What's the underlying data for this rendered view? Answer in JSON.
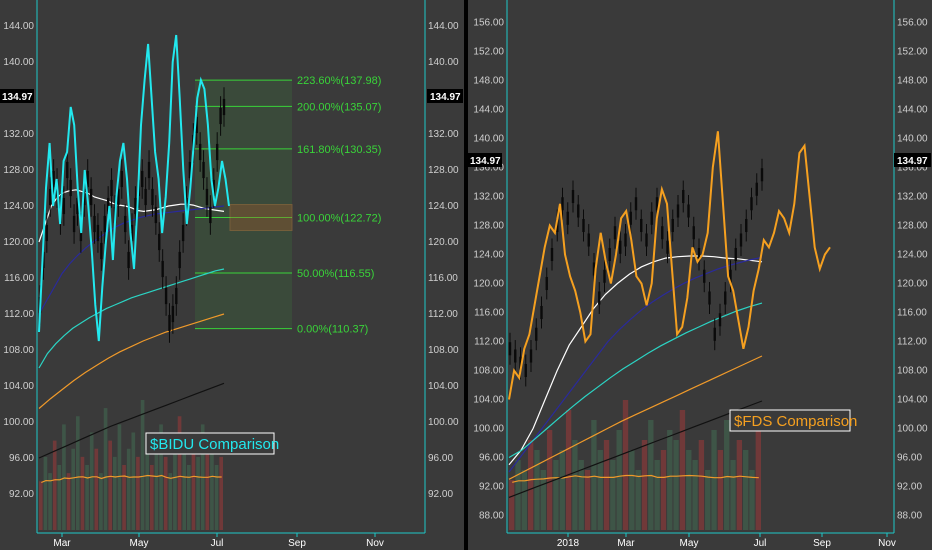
{
  "chart_data": [
    {
      "type": "line",
      "title": "$BIDU Comparison",
      "comparison_color": "#22e8ee",
      "ylim": [
        88,
        146
      ],
      "y_ticks": [
        "92.00",
        "96.00",
        "100.00",
        "104.00",
        "108.00",
        "112.00",
        "116.00",
        "120.00",
        "124.00",
        "128.00",
        "132.00",
        "136.00",
        "140.00",
        "144.00"
      ],
      "x_labels": [
        "Mar",
        "May",
        "Jul",
        "Sep",
        "Nov"
      ],
      "last_price": "134.97",
      "fib_levels": [
        {
          "label": "223.60%(137.98)",
          "price": 137.98
        },
        {
          "label": "200.00%(135.07)",
          "price": 135.07
        },
        {
          "label": "161.80%(130.35)",
          "price": 130.35
        },
        {
          "label": "100.00%(122.72)",
          "price": 122.72
        },
        {
          "label": "50.00%(116.55)",
          "price": 116.55
        },
        {
          "label": "0.00%(110.37)",
          "price": 110.37
        }
      ],
      "price_series": [
        113,
        118,
        121,
        125,
        127,
        126,
        123,
        124,
        128,
        126,
        122,
        124,
        121,
        125,
        127,
        125,
        122,
        121,
        119,
        122,
        124,
        126,
        123,
        125,
        127,
        122,
        118,
        121,
        124,
        126,
        127,
        125,
        128,
        125,
        123,
        120,
        117,
        114,
        111,
        112,
        114,
        118,
        121,
        124,
        128,
        131,
        133,
        130,
        128,
        125,
        123,
        126,
        130,
        134,
        135
      ],
      "comparison_series": [
        110,
        118,
        126,
        131,
        124,
        127,
        122,
        129,
        130,
        135,
        133,
        126,
        121,
        128,
        124,
        119,
        113,
        109,
        115,
        120,
        124,
        118,
        125,
        129,
        131,
        127,
        121,
        117,
        124,
        133,
        138,
        142,
        136,
        130,
        127,
        121,
        125,
        131,
        140,
        143,
        136,
        128,
        122,
        126,
        131,
        136,
        138,
        137,
        133,
        127,
        124,
        126,
        129,
        127,
        124
      ],
      "ma_series": [
        {
          "color": "#ffffff",
          "values": [
            120,
            122,
            124,
            125,
            125.5,
            125.7,
            125.8,
            125.6,
            125.4,
            125,
            124.8,
            124.6,
            124.3,
            124.1,
            124,
            123.8,
            123.5,
            123.4,
            123.5,
            123.6,
            123.8,
            124,
            124.1,
            124.2,
            124.2,
            124.1,
            123.9,
            123.7,
            123.6,
            123.5,
            123.4
          ]
        },
        {
          "color": "#2a2a9c",
          "values": [
            112,
            113.5,
            115,
            116.5,
            117.6,
            118.5,
            119.3,
            120,
            120.6,
            121.2,
            121.7,
            122.1,
            122.4,
            122.7,
            122.9,
            123.1,
            123.2,
            123.3,
            123.4,
            123.5,
            123.6,
            123.7,
            123.8,
            123.9,
            124
          ]
        },
        {
          "color": "#2bd4c4",
          "values": [
            106,
            107.6,
            108.7,
            109.6,
            110.4,
            111,
            111.6,
            112.1,
            112.6,
            113,
            113.4,
            113.8,
            114.1,
            114.4,
            114.7,
            115,
            115.3,
            115.6,
            115.9,
            116.2,
            116.5,
            116.8,
            117
          ]
        },
        {
          "color": "#f09a2a",
          "values": [
            101.5,
            102.6,
            103.6,
            104.6,
            105.5,
            106.3,
            107.1,
            107.8,
            108.4,
            109,
            109.5,
            110,
            110.4,
            110.8,
            111.2,
            111.6,
            112
          ]
        },
        {
          "color": "#111111",
          "values": [
            96,
            96.7,
            97.4,
            98.1,
            98.8,
            99.5,
            100.1,
            100.7,
            101.3,
            101.9,
            102.5,
            103.1,
            103.7,
            104.3
          ]
        }
      ],
      "volume": [
        6,
        9,
        7,
        11,
        8,
        13,
        7,
        10,
        14,
        9,
        8,
        12,
        10,
        7,
        15,
        11,
        9,
        13,
        8,
        10,
        12,
        9,
        16,
        11,
        8,
        10,
        13,
        9,
        7,
        12,
        14,
        10,
        8,
        11,
        9,
        13,
        10,
        12,
        8,
        9
      ]
    },
    {
      "type": "line",
      "title": "$FDS Comparison",
      "comparison_color": "#f5a020",
      "ylim": [
        86,
        158
      ],
      "y_ticks": [
        "88.00",
        "92.00",
        "96.00",
        "100.00",
        "104.00",
        "108.00",
        "112.00",
        "116.00",
        "120.00",
        "124.00",
        "128.00",
        "132.00",
        "136.00",
        "140.00",
        "144.00",
        "148.00",
        "152.00",
        "156.00"
      ],
      "x_labels": [
        "2018",
        "Mar",
        "May",
        "Jul",
        "Sep",
        "Nov"
      ],
      "last_price": "134.97",
      "price_series": [
        111,
        110,
        109,
        108,
        110,
        113,
        116,
        120,
        124,
        128,
        131,
        129,
        132,
        130,
        128,
        126,
        122,
        118,
        121,
        124,
        127,
        125,
        126,
        129,
        131,
        128,
        126,
        129,
        131,
        127,
        125,
        128,
        130,
        132,
        130,
        127,
        124,
        121,
        118,
        113,
        115,
        118,
        121,
        124,
        126,
        128,
        131,
        133,
        135
      ],
      "comparison_series": [
        104,
        108,
        107,
        111,
        113,
        117,
        121,
        125,
        128,
        127,
        131,
        124,
        121,
        119,
        116,
        112,
        113,
        122,
        127,
        123,
        120,
        124,
        129,
        130,
        126,
        121,
        120,
        117,
        120,
        129,
        133,
        131,
        122,
        113,
        114,
        118,
        125,
        123,
        124,
        127,
        136,
        141,
        131,
        121,
        119,
        115,
        111,
        114,
        119,
        122,
        126,
        125,
        127,
        130,
        129,
        127,
        131,
        138,
        139,
        132,
        125,
        122,
        124,
        125
      ],
      "ma_series": [
        {
          "color": "#ffffff",
          "values": [
            95,
            97,
            100,
            104,
            108,
            111.5,
            114,
            116.5,
            118.5,
            120,
            121.3,
            122.3,
            123,
            123.5,
            123.7,
            123.8,
            123.8,
            123.7,
            123.5,
            123.4,
            123.2,
            123
          ]
        },
        {
          "color": "#2a2a9c",
          "values": [
            94,
            96,
            98,
            100,
            102,
            104,
            106,
            108,
            110,
            112,
            113.6,
            115,
            116.3,
            117.4,
            118.4,
            119.3,
            120.1,
            120.8,
            121.4,
            122,
            122.5,
            122.9,
            123.3,
            123.6
          ]
        },
        {
          "color": "#2bd4c4",
          "values": [
            96,
            97,
            98.5,
            100,
            101.5,
            103,
            104.4,
            105.7,
            107,
            108.2,
            109.3,
            110.4,
            111.4,
            112.3,
            113.2,
            114,
            114.8,
            115.5,
            116.2,
            116.8,
            117.3
          ]
        },
        {
          "color": "#f09a2a",
          "values": [
            93,
            94,
            95,
            96,
            97,
            98,
            99,
            100,
            101,
            101.9,
            102.8,
            103.7,
            104.6,
            105.5,
            106.4,
            107.3,
            108.2,
            109.1,
            110
          ]
        },
        {
          "color": "#111111",
          "values": [
            90.5,
            91.2,
            91.9,
            92.6,
            93.3,
            94,
            94.7,
            95.4,
            96.1,
            96.8,
            97.5,
            98.2,
            98.9,
            99.6,
            100.3,
            101,
            101.7,
            102.4,
            103.1,
            103.8
          ]
        }
      ],
      "volume": [
        5,
        7,
        6,
        9,
        8,
        6,
        10,
        7,
        8,
        12,
        9,
        7,
        6,
        11,
        8,
        9,
        7,
        10,
        13,
        8,
        6,
        9,
        11,
        7,
        8,
        10,
        9,
        12,
        8,
        7,
        9,
        6,
        10,
        8,
        11,
        7,
        9,
        8,
        6,
        10
      ]
    }
  ]
}
